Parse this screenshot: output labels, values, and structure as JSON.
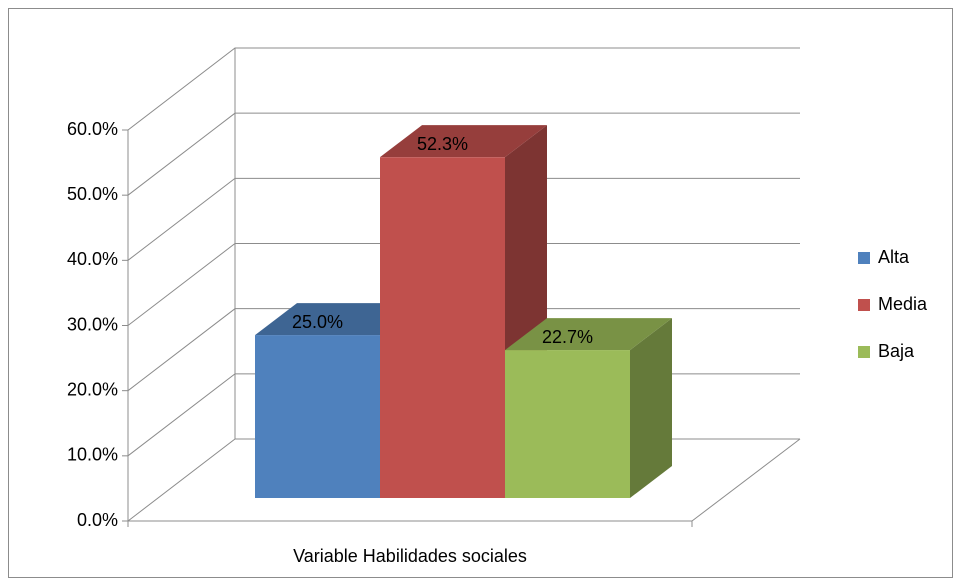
{
  "chart_data": {
    "type": "bar3d",
    "categories": [
      "Variable Habilidades sociales"
    ],
    "series": [
      {
        "name": "Alta",
        "color": "#4f81bd",
        "values": [
          25.0
        ],
        "value_labels": [
          "25.0%"
        ]
      },
      {
        "name": "Media",
        "color": "#c0504d",
        "values": [
          52.3
        ],
        "value_labels": [
          "52.3%"
        ]
      },
      {
        "name": "Baja",
        "color": "#9bbb59",
        "values": [
          22.7
        ],
        "value_labels": [
          "22.7%"
        ]
      }
    ],
    "ylim": [
      0,
      60
    ],
    "yticks": [
      {
        "value": 0,
        "label": "0.0%"
      },
      {
        "value": 10,
        "label": "10.0%"
      },
      {
        "value": 20,
        "label": "20.0%"
      },
      {
        "value": 30,
        "label": "30.0%"
      },
      {
        "value": 40,
        "label": "40.0%"
      },
      {
        "value": 50,
        "label": "50.0%"
      },
      {
        "value": 60,
        "label": "60.0%"
      }
    ],
    "grid": true,
    "legend": "right"
  }
}
